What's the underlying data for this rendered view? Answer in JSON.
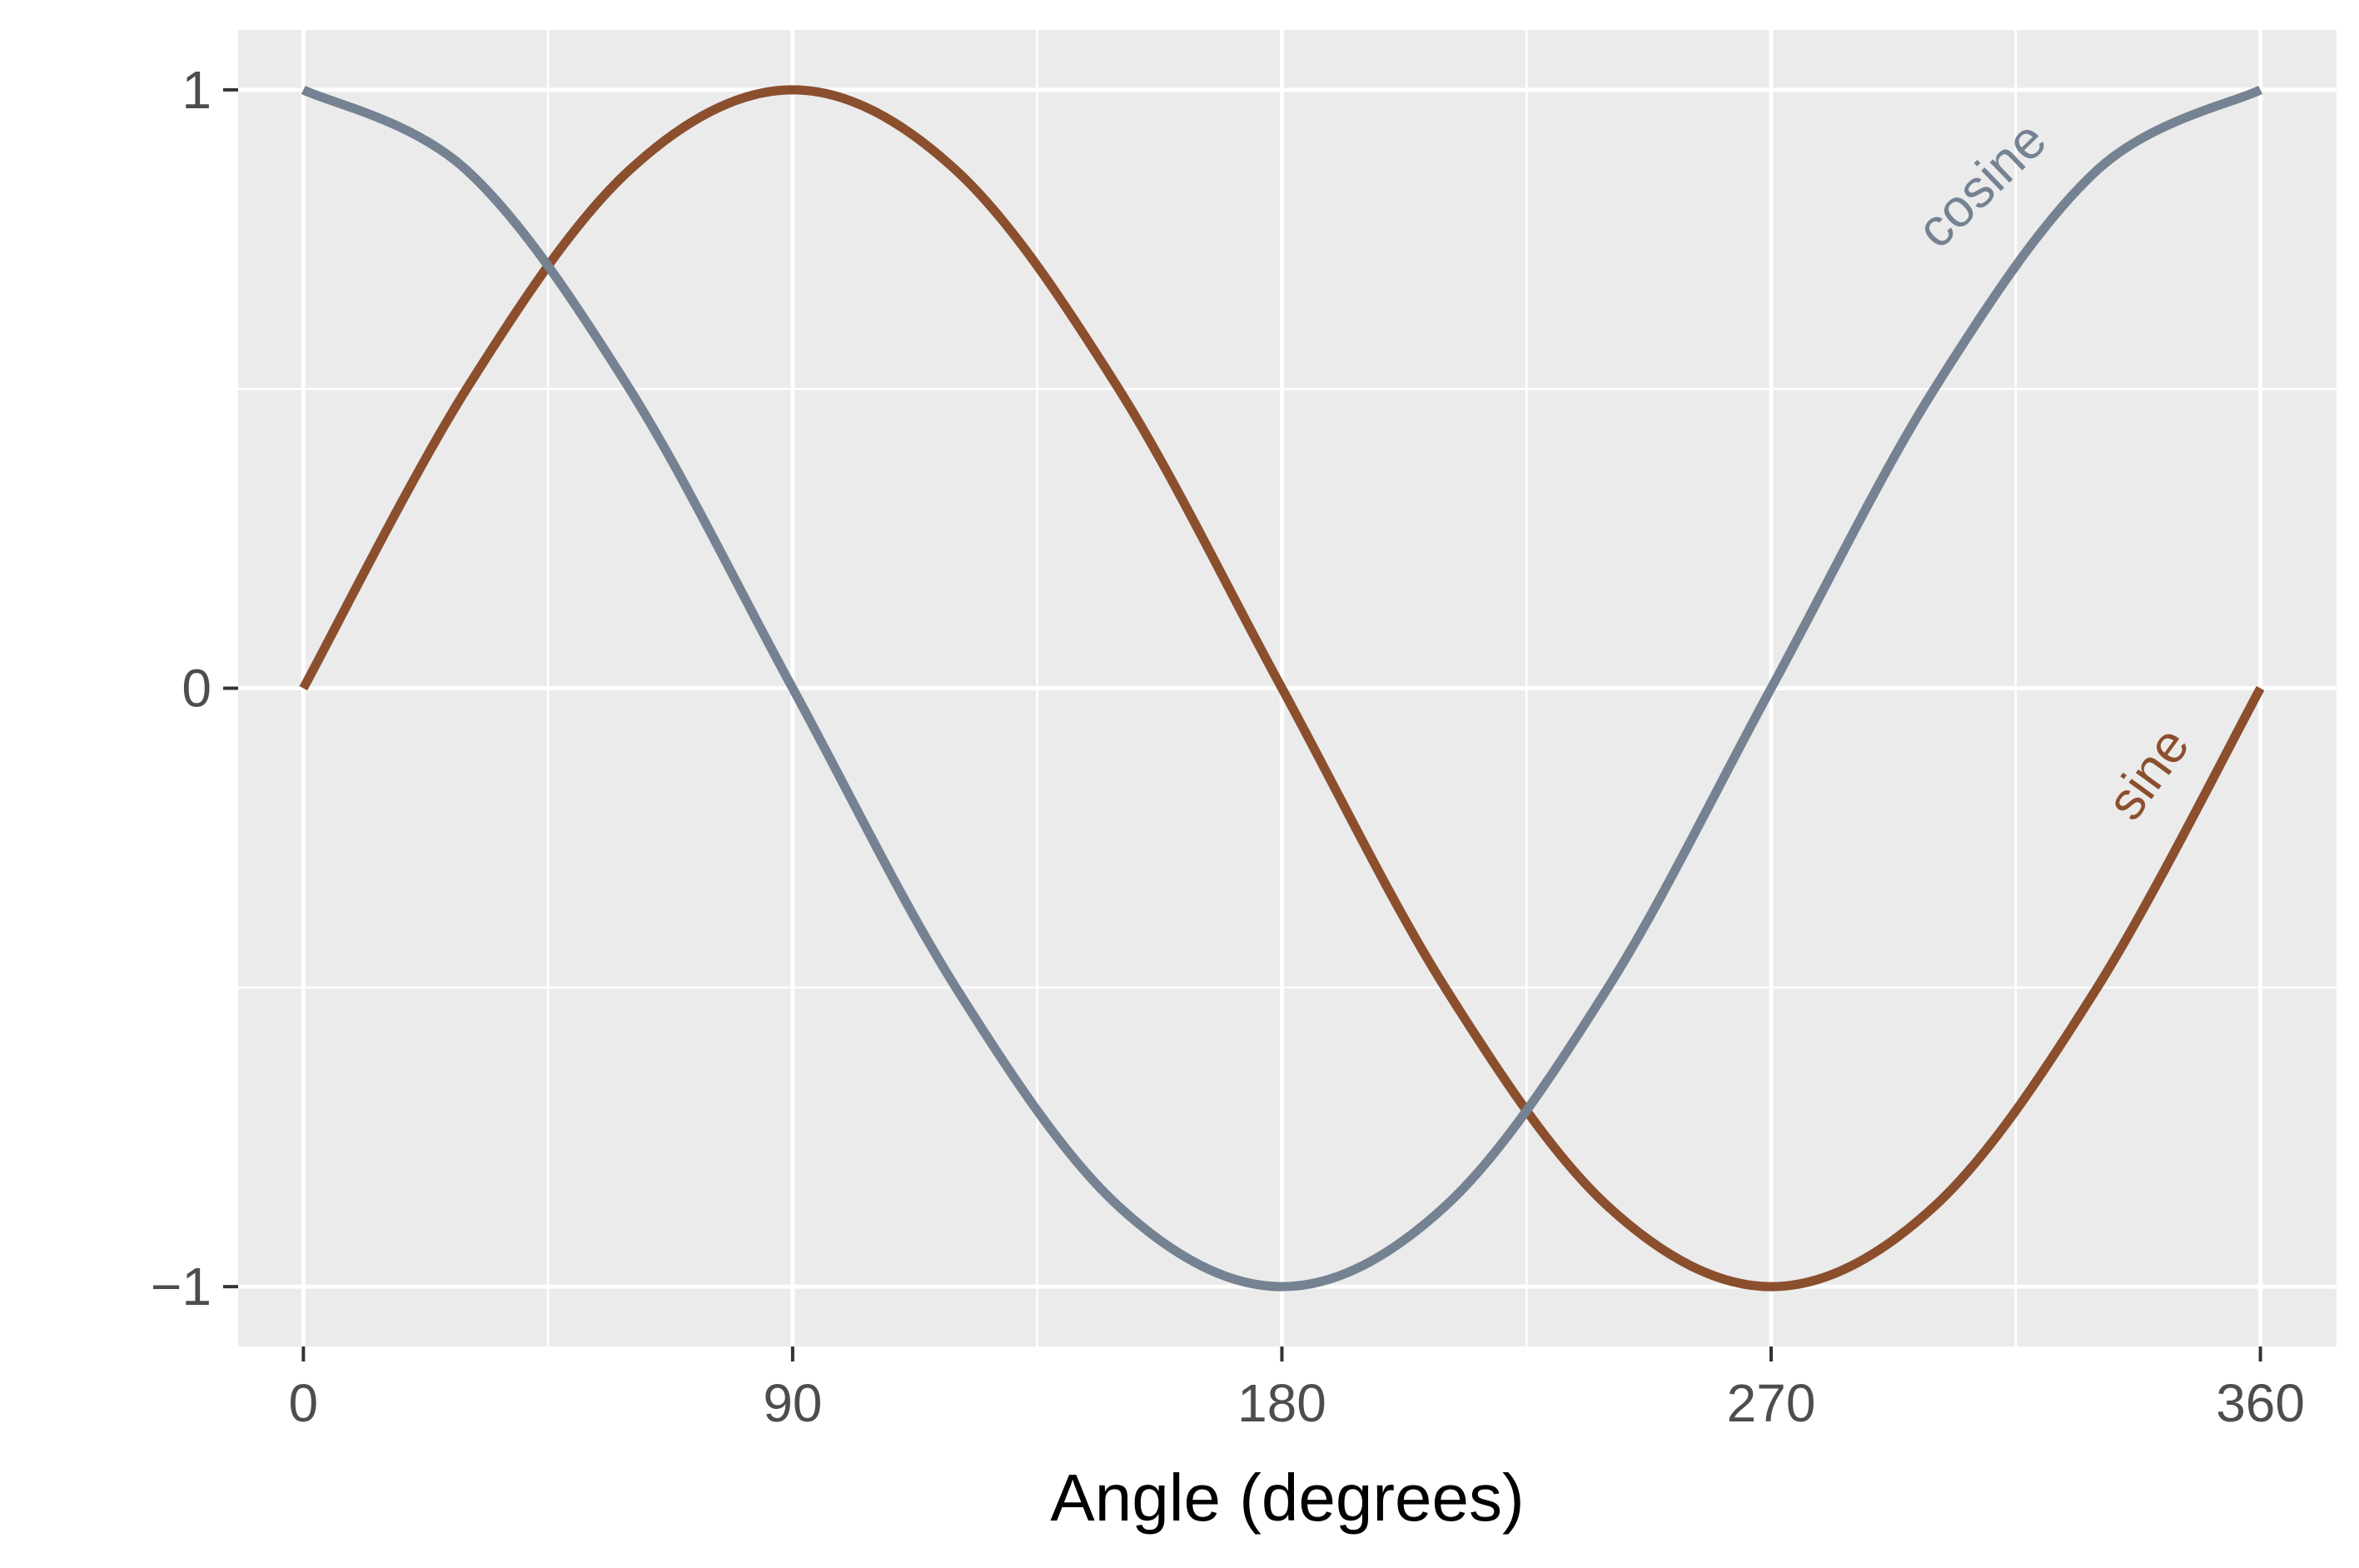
{
  "chart_data": {
    "type": "line",
    "title": "",
    "xlabel": "Angle (degrees)",
    "ylabel": "",
    "xlim": [
      -12,
      374
    ],
    "ylim": [
      -1.1,
      1.1
    ],
    "x_ticks": [
      0,
      90,
      180,
      270,
      360
    ],
    "x_tick_labels": [
      "0",
      "90",
      "180",
      "270",
      "360"
    ],
    "x_minor_ticks": [
      45,
      135,
      225,
      315
    ],
    "y_ticks": [
      -1,
      0,
      1
    ],
    "y_tick_labels": [
      "−1",
      "0",
      "1"
    ],
    "y_minor_ticks": [
      -0.5,
      0.5
    ],
    "grid": true,
    "legend": "none",
    "background": "#ebebeb",
    "gridline_color": "#ffffff",
    "series": [
      {
        "name": "sine",
        "color": "#8b4f2e",
        "x": [
          0,
          30,
          60,
          90,
          120,
          150,
          180,
          210,
          240,
          270,
          300,
          330,
          360
        ],
        "values": [
          0,
          0.5,
          0.866,
          1,
          0.866,
          0.5,
          0,
          -0.5,
          -0.866,
          -1,
          -0.866,
          -0.5,
          0
        ],
        "label": {
          "text": "sine",
          "x": 342,
          "y": -0.16,
          "angle_deg": -54
        }
      },
      {
        "name": "cosine",
        "color": "#748291",
        "x": [
          0,
          30,
          60,
          90,
          120,
          150,
          180,
          210,
          240,
          270,
          300,
          330,
          360
        ],
        "values": [
          1,
          0.866,
          0.5,
          0,
          -0.5,
          -0.866,
          -1,
          -0.866,
          -0.5,
          0,
          0.5,
          0.866,
          1
        ],
        "label": {
          "text": "cosine",
          "x": 311,
          "y": 0.82,
          "angle_deg": -44
        }
      }
    ]
  }
}
